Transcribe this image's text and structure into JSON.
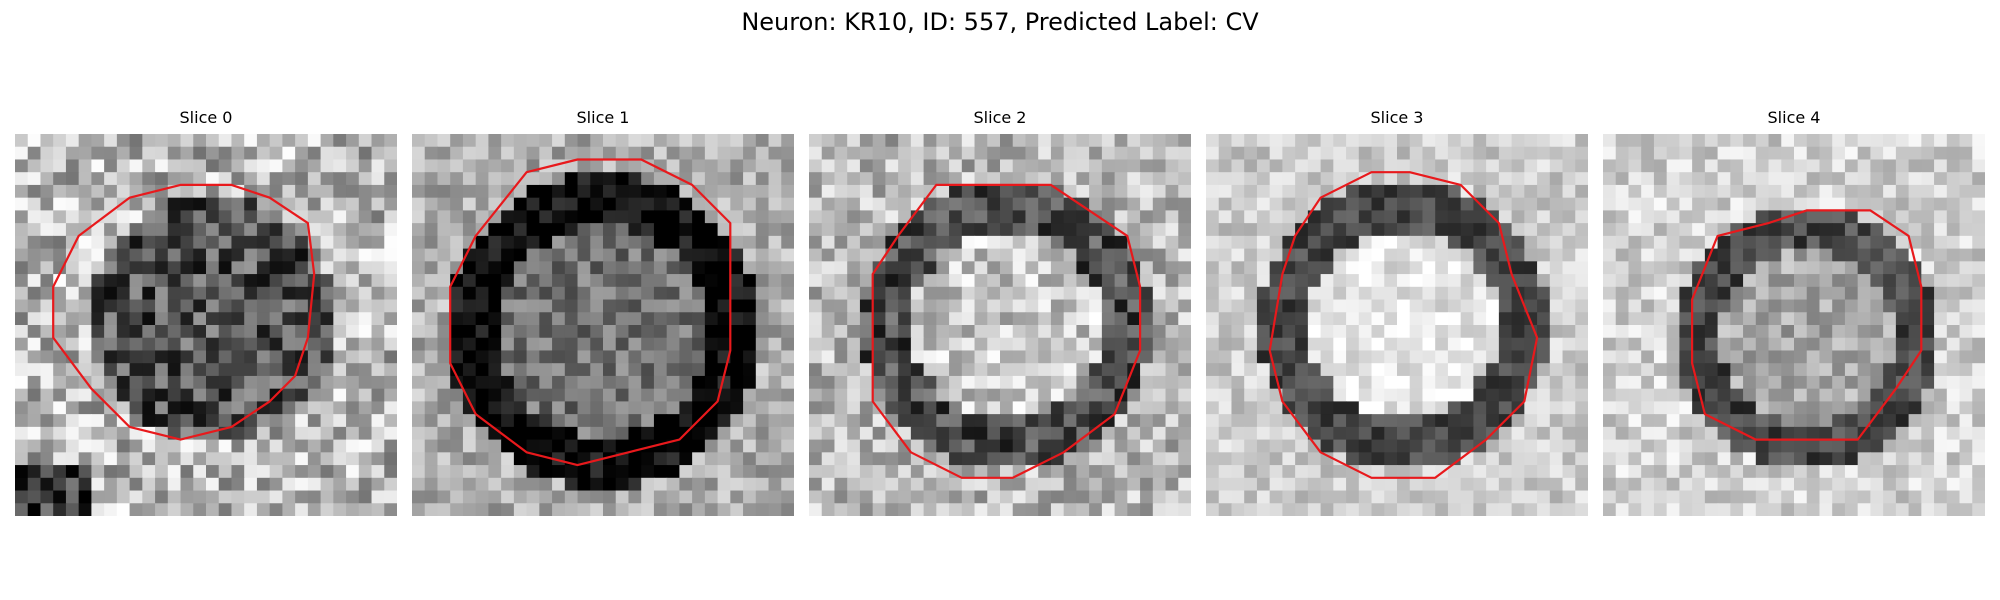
{
  "figure": {
    "title": "Neuron: KR10, ID: 557, Predicted Label: CV"
  },
  "contour_color": "#e8191c",
  "slices": [
    {
      "title": "Slice 0",
      "interior": "dark",
      "border": "none"
    },
    {
      "title": "Slice 1",
      "interior": "mid",
      "border": "black"
    },
    {
      "title": "Slice 2",
      "interior": "light",
      "border": "dark"
    },
    {
      "title": "Slice 3",
      "interior": "bright",
      "border": "dark"
    },
    {
      "title": "Slice 4",
      "interior": "mid-light",
      "border": "dark"
    }
  ]
}
